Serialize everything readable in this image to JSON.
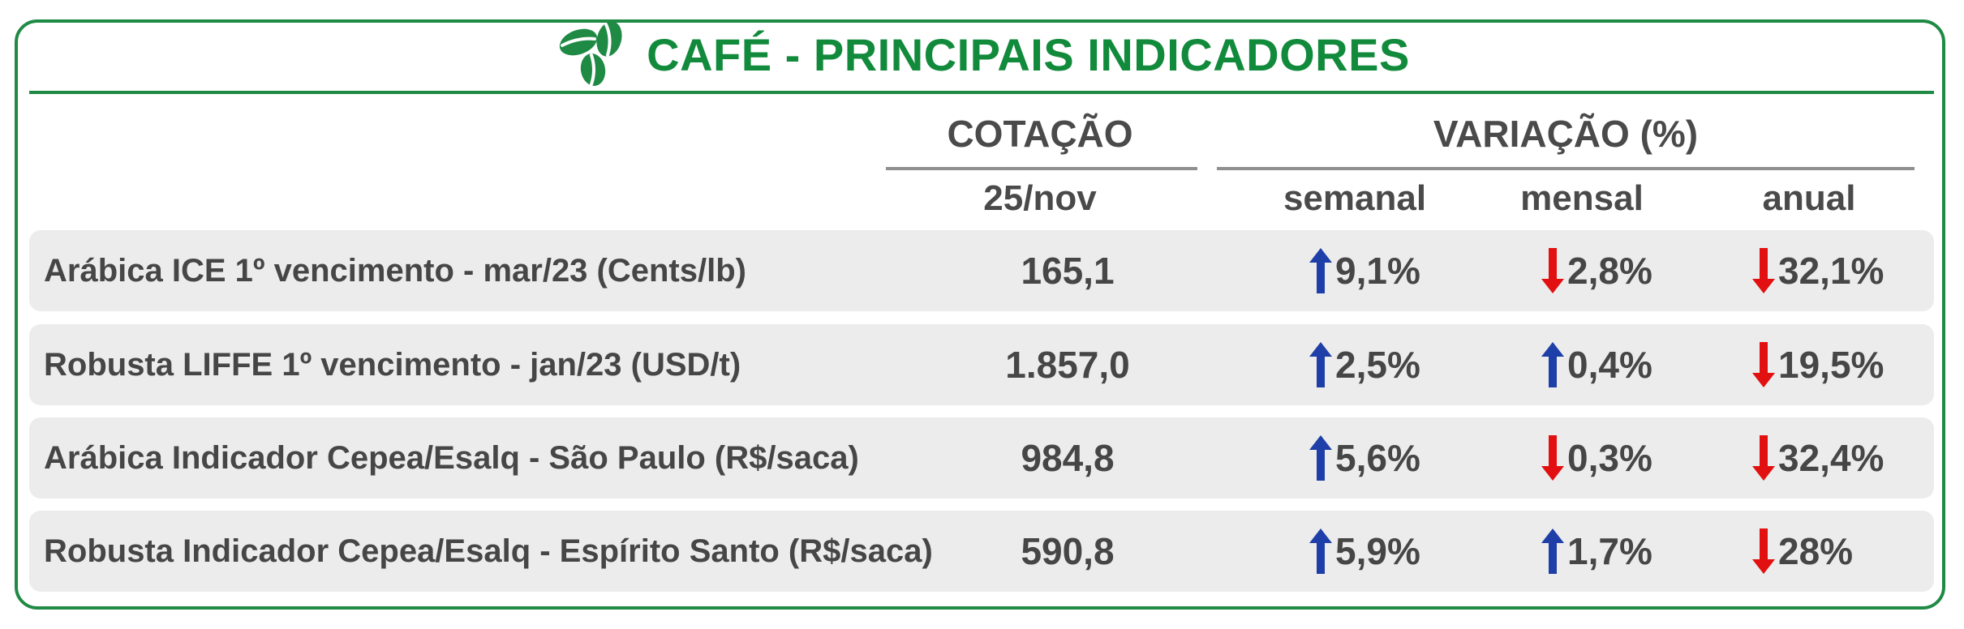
{
  "title": "CAFÉ - PRINCIPAIS INDICADORES",
  "header": {
    "cotacao": "COTAÇÃO",
    "variacao": "VARIAÇÃO (%)",
    "date": "25/nov",
    "semanal": "semanal",
    "mensal": "mensal",
    "anual": "anual"
  },
  "colors": {
    "brand_green": "#1f8a44",
    "up": "#1f3fa8",
    "down": "#e21010"
  },
  "rows": [
    {
      "label": "Arábica ICE 1º vencimento - mar/23 (Cents/lb)",
      "price": "165,1",
      "semanal": "9,1%",
      "semanal_dir": "up",
      "mensal": "2,8%",
      "mensal_dir": "down",
      "anual": "32,1%",
      "anual_dir": "down"
    },
    {
      "label": "Robusta LIFFE 1º vencimento - jan/23 (USD/t)",
      "price": "1.857,0",
      "semanal": "2,5%",
      "semanal_dir": "up",
      "mensal": "0,4%",
      "mensal_dir": "up",
      "anual": "19,5%",
      "anual_dir": "down"
    },
    {
      "label": "Arábica Indicador Cepea/Esalq - São Paulo (R$/saca)",
      "price": "984,8",
      "semanal": "5,6%",
      "semanal_dir": "up",
      "mensal": "0,3%",
      "mensal_dir": "down",
      "anual": "32,4%",
      "anual_dir": "down"
    },
    {
      "label": "Robusta Indicador Cepea/Esalq - Espírito Santo (R$/saca)",
      "price": "590,8",
      "semanal": "5,9%",
      "semanal_dir": "up",
      "mensal": "1,7%",
      "mensal_dir": "up",
      "anual": "28%",
      "anual_dir": "down"
    }
  ]
}
